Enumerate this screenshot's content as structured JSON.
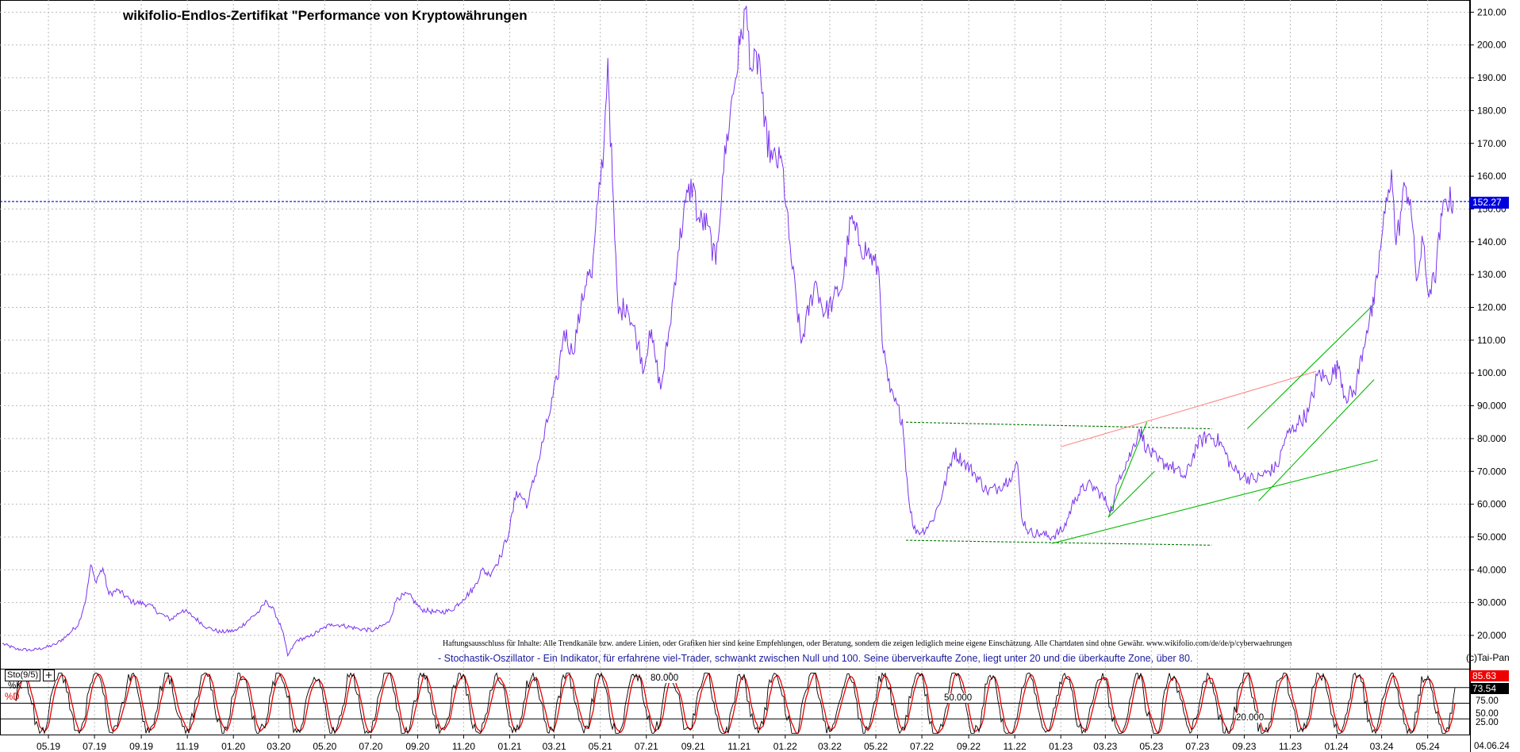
{
  "title": "wikifolio-Endlos-Zertifikat \"Performance von Kryptowährungen",
  "disclaimer": "Haftungsausschluss für Inhalte: Alle Trendkanäle bzw. andere Linien, oder Grafiken hier sind keine Empfehlungen, oder Beratung, sondern die zeigen lediglich meine eigene Einschätzung. Alle Chartdaten sind ohne Gewähr. www.wikifolio.com/de/de/p/cyberwaehrungen",
  "stochastic_description": "- Stochastik-Oszillator - Ein Indikator, für erfahrene viel-Trader, schwankt zwischen Null und 100. Seine überverkaufte Zone, liegt unter 20 und die überkaufte Zone, über 80.",
  "copyright": "(c)Tai-Pan",
  "indicator": {
    "name": "Sto(9/5)",
    "plus": "+",
    "k_label": "%K",
    "d_label": "%D",
    "k_value": "85.63",
    "d_value": "73.54"
  },
  "current_price": "152.27",
  "end_date": "04.06.24",
  "stochastic_axis": {
    "ticks": [
      "75.00",
      "50.00",
      "25.00"
    ],
    "inline_labels": [
      "80.000",
      "50.000",
      "20.000"
    ]
  },
  "colors": {
    "price_line": "#7a33ee",
    "grid": "#b9b9b9",
    "current_price_line": "#0000dd",
    "k_line": "#000000",
    "d_line": "#ee0000",
    "channel_green": "#00bb00",
    "channel_dashed": "#007700",
    "resistance_pink": "#ff8a8a"
  },
  "chart_data": {
    "type": "line",
    "title": "wikifolio-Endlos-Zertifikat \"Performance von Kryptowährungen",
    "xlabel": "",
    "ylabel": "",
    "x_tick_labels": [
      "05.19",
      "07.19",
      "09.19",
      "11.19",
      "01.20",
      "03.20",
      "05.20",
      "07.20",
      "09.20",
      "11.20",
      "01.21",
      "03.21",
      "05.21",
      "07.21",
      "09.21",
      "11.21",
      "01.22",
      "03.22",
      "05.22",
      "07.22",
      "09.22",
      "11.22",
      "01.23",
      "03.23",
      "05.23",
      "07.23",
      "09.23",
      "11.23",
      "01.24",
      "03.24",
      "05.24"
    ],
    "y_tick_labels": [
      "20.000",
      "30.000",
      "40.000",
      "50.000",
      "60.000",
      "70.000",
      "80.000",
      "90.000",
      "100.00",
      "110.00",
      "120.00",
      "130.00",
      "140.00",
      "150.00",
      "160.00",
      "170.00",
      "180.00",
      "190.00",
      "200.00",
      "210.00"
    ],
    "ylim": [
      15,
      213
    ],
    "grid": true,
    "series": [
      {
        "points": [
          [
            "2019-03-01",
            17.5
          ],
          [
            "2019-03-20",
            15.8
          ],
          [
            "2019-04-10",
            15.5
          ],
          [
            "2019-04-25",
            16.2
          ],
          [
            "2019-05-10",
            17.2
          ],
          [
            "2019-05-25",
            19.8
          ],
          [
            "2019-06-10",
            23.5
          ],
          [
            "2019-06-20",
            31.5
          ],
          [
            "2019-06-26",
            41.5
          ],
          [
            "2019-07-02",
            36.5
          ],
          [
            "2019-07-12",
            40.5
          ],
          [
            "2019-07-20",
            32.5
          ],
          [
            "2019-08-01",
            33.8
          ],
          [
            "2019-08-20",
            30.2
          ],
          [
            "2019-09-10",
            29.5
          ],
          [
            "2019-09-25",
            26.8
          ],
          [
            "2019-10-10",
            24.8
          ],
          [
            "2019-10-26",
            27.8
          ],
          [
            "2019-11-10",
            25.5
          ],
          [
            "2019-11-28",
            22.3
          ],
          [
            "2019-12-15",
            21.0
          ],
          [
            "2020-01-05",
            21.5
          ],
          [
            "2020-01-20",
            24.5
          ],
          [
            "2020-02-05",
            27.5
          ],
          [
            "2020-02-14",
            30.5
          ],
          [
            "2020-02-25",
            27.0
          ],
          [
            "2020-03-06",
            21.5
          ],
          [
            "2020-03-13",
            13.8
          ],
          [
            "2020-03-25",
            18.5
          ],
          [
            "2020-04-10",
            19.5
          ],
          [
            "2020-04-28",
            22.0
          ],
          [
            "2020-05-10",
            23.5
          ],
          [
            "2020-05-25",
            23.0
          ],
          [
            "2020-06-15",
            22.0
          ],
          [
            "2020-07-05",
            21.5
          ],
          [
            "2020-07-25",
            24.0
          ],
          [
            "2020-08-05",
            31.5
          ],
          [
            "2020-08-20",
            32.5
          ],
          [
            "2020-09-05",
            28.0
          ],
          [
            "2020-09-25",
            27.0
          ],
          [
            "2020-10-15",
            27.5
          ],
          [
            "2020-10-31",
            31.0
          ],
          [
            "2020-11-15",
            34.5
          ],
          [
            "2020-11-25",
            40.0
          ],
          [
            "2020-12-05",
            38.5
          ],
          [
            "2020-12-20",
            44.0
          ],
          [
            "2021-01-01",
            52.5
          ],
          [
            "2021-01-10",
            64.0
          ],
          [
            "2021-01-25",
            60.0
          ],
          [
            "2021-02-08",
            73.0
          ],
          [
            "2021-02-20",
            85.0
          ],
          [
            "2021-03-05",
            98.0
          ],
          [
            "2021-03-14",
            113.0
          ],
          [
            "2021-03-25",
            106.0
          ],
          [
            "2021-04-05",
            119.0
          ],
          [
            "2021-04-14",
            131.0
          ],
          [
            "2021-04-20",
            129.0
          ],
          [
            "2021-04-28",
            152.0
          ],
          [
            "2021-05-06",
            170.0
          ],
          [
            "2021-05-11",
            196.0
          ],
          [
            "2021-05-13",
            182.0
          ],
          [
            "2021-05-20",
            141.0
          ],
          [
            "2021-05-25",
            118.0
          ],
          [
            "2021-06-05",
            121.0
          ],
          [
            "2021-06-20",
            109.0
          ],
          [
            "2021-06-28",
            101.0
          ],
          [
            "2021-07-05",
            113.0
          ],
          [
            "2021-07-12",
            106.0
          ],
          [
            "2021-07-20",
            95.0
          ],
          [
            "2021-08-01",
            114.0
          ],
          [
            "2021-08-12",
            137.0
          ],
          [
            "2021-08-22",
            152.0
          ],
          [
            "2021-09-01",
            158.0
          ],
          [
            "2021-09-07",
            147.0
          ],
          [
            "2021-09-20",
            145.0
          ],
          [
            "2021-10-01",
            133.0
          ],
          [
            "2021-10-10",
            160.0
          ],
          [
            "2021-10-20",
            179.0
          ],
          [
            "2021-11-02",
            200.0
          ],
          [
            "2021-11-09",
            211.0
          ],
          [
            "2021-11-18",
            192.0
          ],
          [
            "2021-11-28",
            196.0
          ],
          [
            "2021-12-04",
            175.0
          ],
          [
            "2021-12-15",
            165.0
          ],
          [
            "2021-12-28",
            164.0
          ],
          [
            "2022-01-06",
            141.0
          ],
          [
            "2022-01-22",
            109.0
          ],
          [
            "2022-02-10",
            128.0
          ],
          [
            "2022-02-22",
            118.0
          ],
          [
            "2022-03-05",
            122.0
          ],
          [
            "2022-03-18",
            127.0
          ],
          [
            "2022-03-29",
            147.0
          ],
          [
            "2022-04-10",
            139.0
          ],
          [
            "2022-04-20",
            137.0
          ],
          [
            "2022-05-05",
            131.0
          ],
          [
            "2022-05-11",
            106.0
          ],
          [
            "2022-05-20",
            94.0
          ],
          [
            "2022-06-05",
            86.0
          ],
          [
            "2022-06-13",
            63.0
          ],
          [
            "2022-06-20",
            52.5
          ],
          [
            "2022-07-01",
            51.5
          ],
          [
            "2022-07-15",
            55.0
          ],
          [
            "2022-07-28",
            63.0
          ],
          [
            "2022-08-12",
            76.0
          ],
          [
            "2022-08-25",
            73.0
          ],
          [
            "2022-09-10",
            69.0
          ],
          [
            "2022-09-25",
            64.0
          ],
          [
            "2022-10-10",
            65.0
          ],
          [
            "2022-10-25",
            68.0
          ],
          [
            "2022-11-05",
            72.0
          ],
          [
            "2022-11-10",
            56.0
          ],
          [
            "2022-11-20",
            51.5
          ],
          [
            "2022-12-05",
            51.0
          ],
          [
            "2022-12-20",
            50.0
          ],
          [
            "2023-01-05",
            52.5
          ],
          [
            "2023-01-20",
            62.0
          ],
          [
            "2023-02-05",
            66.0
          ],
          [
            "2023-02-20",
            64.0
          ],
          [
            "2023-03-10",
            58.0
          ],
          [
            "2023-03-20",
            69.0
          ],
          [
            "2023-04-05",
            76.0
          ],
          [
            "2023-04-15",
            83.0
          ],
          [
            "2023-04-25",
            77.0
          ],
          [
            "2023-05-10",
            73.0
          ],
          [
            "2023-05-25",
            72.0
          ],
          [
            "2023-06-15",
            68.0
          ],
          [
            "2023-06-30",
            78.0
          ],
          [
            "2023-07-15",
            81.0
          ],
          [
            "2023-07-31",
            79.0
          ],
          [
            "2023-08-16",
            71.0
          ],
          [
            "2023-08-31",
            68.5
          ],
          [
            "2023-09-15",
            67.5
          ],
          [
            "2023-09-30",
            69.5
          ],
          [
            "2023-10-15",
            71.5
          ],
          [
            "2023-10-25",
            80.0
          ],
          [
            "2023-11-10",
            84.5
          ],
          [
            "2023-11-25",
            88.0
          ],
          [
            "2023-12-08",
            100.0
          ],
          [
            "2023-12-20",
            98.0
          ],
          [
            "2024-01-05",
            102.0
          ],
          [
            "2024-01-12",
            93.0
          ],
          [
            "2024-01-25",
            94.0
          ],
          [
            "2024-02-10",
            113.0
          ],
          [
            "2024-02-20",
            121.0
          ],
          [
            "2024-03-01",
            141.0
          ],
          [
            "2024-03-10",
            156.0
          ],
          [
            "2024-03-14",
            162.0
          ],
          [
            "2024-03-20",
            139.0
          ],
          [
            "2024-04-01",
            157.0
          ],
          [
            "2024-04-08",
            153.0
          ],
          [
            "2024-04-16",
            128.0
          ],
          [
            "2024-04-25",
            140.0
          ],
          [
            "2024-05-01",
            125.0
          ],
          [
            "2024-05-10",
            128.0
          ],
          [
            "2024-05-20",
            148.0
          ],
          [
            "2024-05-25",
            153.0
          ],
          [
            "2024-06-04",
            152.27
          ]
        ]
      }
    ],
    "current_value": 152.27,
    "trend_lines": [
      {
        "style": "dashed",
        "color": "green",
        "from": [
          "2022-06-10",
          85.0
        ],
        "to": [
          "2023-07-20",
          83.0
        ]
      },
      {
        "style": "dashed",
        "color": "green",
        "from": [
          "2022-06-10",
          49.0
        ],
        "to": [
          "2023-07-20",
          47.5
        ]
      },
      {
        "style": "solid",
        "color": "green",
        "from": [
          "2022-12-20",
          48.0
        ],
        "to": [
          "2024-02-25",
          73.5
        ]
      },
      {
        "style": "solid",
        "color": "green",
        "from": [
          "2023-03-05",
          56.0
        ],
        "to": [
          "2023-04-25",
          85.0
        ]
      },
      {
        "style": "solid",
        "color": "green",
        "from": [
          "2023-03-05",
          56.0
        ],
        "to": [
          "2023-05-05",
          70.0
        ]
      },
      {
        "style": "solid",
        "color": "pink",
        "from": [
          "2023-01-01",
          77.5
        ],
        "to": [
          "2023-12-05",
          100.5
        ]
      },
      {
        "style": "solid",
        "color": "green",
        "from": [
          "2023-09-05",
          83.0
        ],
        "to": [
          "2024-02-20",
          121.0
        ]
      },
      {
        "style": "solid",
        "color": "green",
        "from": [
          "2023-09-20",
          61.0
        ],
        "to": [
          "2024-02-20",
          98.0
        ]
      }
    ],
    "stochastic": {
      "k": 85.63,
      "d": 73.54,
      "levels": [
        80,
        50,
        20
      ],
      "ylim": [
        0,
        100
      ],
      "ticks": [
        75,
        50,
        25
      ]
    }
  }
}
